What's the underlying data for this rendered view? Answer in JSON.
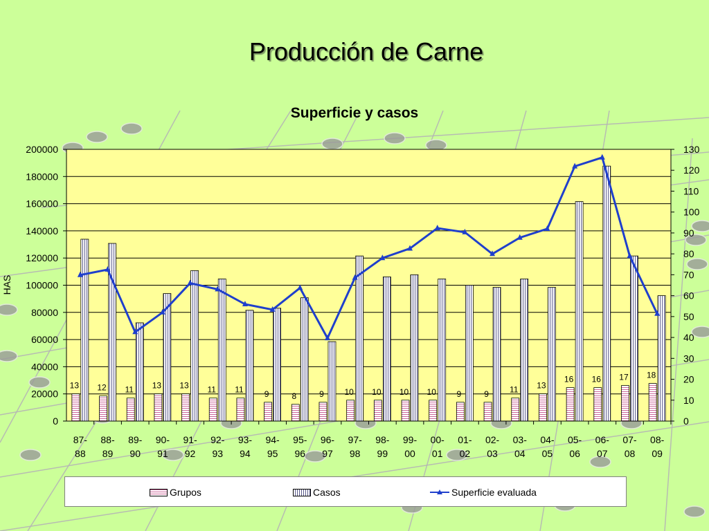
{
  "slide": {
    "title": "Producción de Carne"
  },
  "colors": {
    "background": "#ccff99",
    "plot_area": "#ffff99",
    "line": "#1f3fcc",
    "grupos": "#cc6699",
    "casos": "#5a5a8a"
  },
  "legend": {
    "grupos": "Grupos",
    "casos": "Casos",
    "superficie": "Superficie evaluada",
    "placement": "bottom"
  },
  "chart_data": {
    "type": "bar",
    "title": "Superficie y casos",
    "ylabel": "HAS",
    "ylim": [
      0,
      200000
    ],
    "y_ticks": [
      0,
      20000,
      40000,
      60000,
      80000,
      100000,
      120000,
      140000,
      160000,
      180000,
      200000
    ],
    "y2lim": [
      0,
      130
    ],
    "y2_ticks": [
      0,
      10,
      20,
      30,
      40,
      50,
      60,
      70,
      80,
      90,
      100,
      110,
      120,
      130
    ],
    "grid": true,
    "categories": [
      [
        "87-",
        "88"
      ],
      [
        "88-",
        "89"
      ],
      [
        "89-",
        "90"
      ],
      [
        "90-",
        "91"
      ],
      [
        "91-",
        "92"
      ],
      [
        "92-",
        "93"
      ],
      [
        "93-",
        "94"
      ],
      [
        "94-",
        "95"
      ],
      [
        "95-",
        "96"
      ],
      [
        "96-",
        "97"
      ],
      [
        "97-",
        "98"
      ],
      [
        "98-",
        "99"
      ],
      [
        "99-",
        "00"
      ],
      [
        "00-",
        "01"
      ],
      [
        "01-",
        "02"
      ],
      [
        "02-",
        "03"
      ],
      [
        "03-",
        "04"
      ],
      [
        "04-",
        "05"
      ],
      [
        "05-",
        "06"
      ],
      [
        "06-",
        "07"
      ],
      [
        "07-",
        "08"
      ],
      [
        "08-",
        "09"
      ]
    ],
    "series": [
      {
        "name": "Grupos",
        "type": "bar",
        "axis": "right",
        "values": [
          13,
          12,
          11,
          13,
          13,
          11,
          11,
          9,
          8,
          9,
          10,
          10,
          10,
          10,
          9,
          9,
          11,
          13,
          16,
          16,
          17,
          18
        ]
      },
      {
        "name": "Casos",
        "type": "bar",
        "axis": "right",
        "values": [
          87,
          85,
          47,
          61,
          72,
          68,
          53,
          54,
          59,
          38,
          79,
          69,
          70,
          68,
          65,
          64,
          68,
          64,
          105,
          122,
          79,
          60
        ]
      },
      {
        "name": "Superficie evaluada",
        "type": "line",
        "axis": "left",
        "values": [
          107500,
          111500,
          65500,
          80000,
          101500,
          97000,
          86000,
          82000,
          98000,
          61000,
          105500,
          120000,
          127000,
          142000,
          139000,
          123000,
          135000,
          141500,
          187500,
          194000,
          121500,
          79000
        ]
      }
    ]
  }
}
